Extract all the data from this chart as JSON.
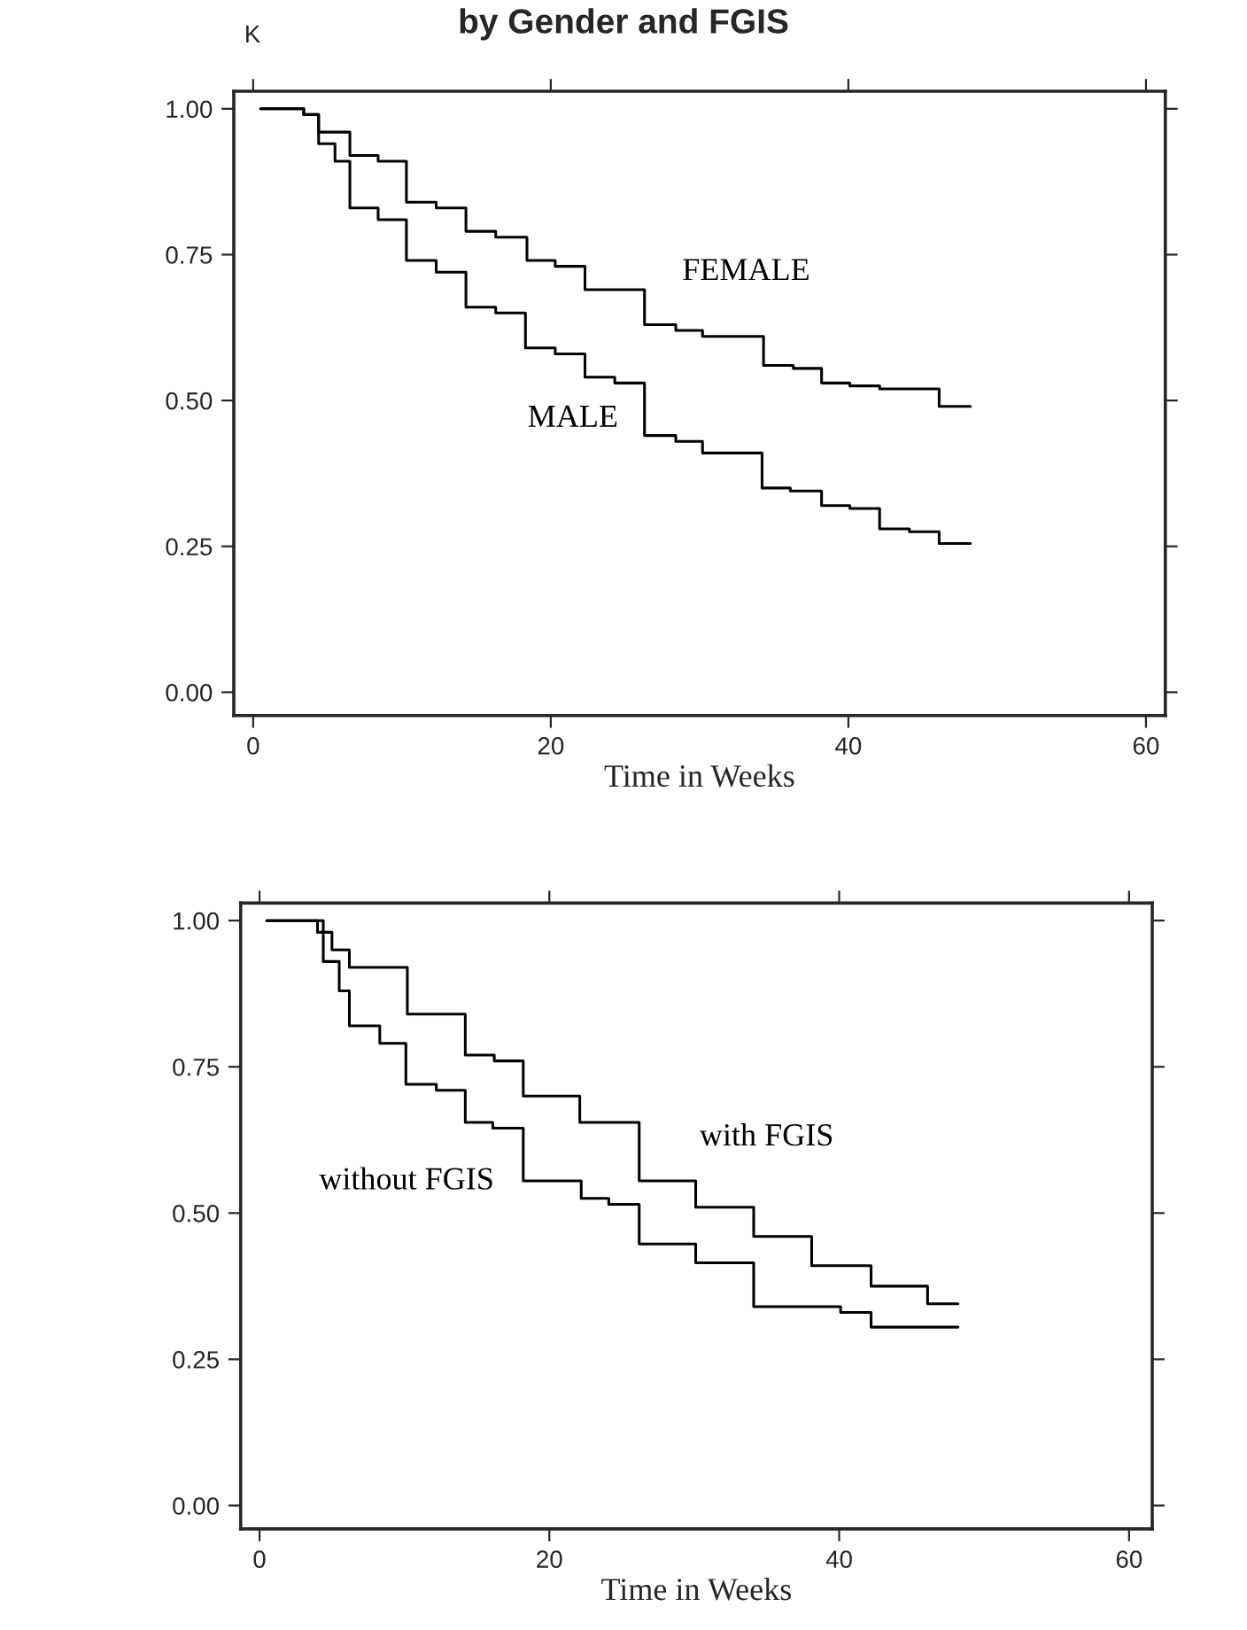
{
  "chart_data": [
    {
      "type": "step",
      "title": "by Gender and FGIS",
      "ylabel": "K",
      "xlabel": "Time in Weeks",
      "xlim": [
        -1.3,
        61.3
      ],
      "ylim": [
        -0.04,
        1.03
      ],
      "xticks": [
        0,
        20,
        40,
        60
      ],
      "yticks": [
        {
          "value": 0,
          "label": "0.00"
        },
        {
          "value": 0.25,
          "label": "0.25"
        },
        {
          "value": 0.5,
          "label": "0.50"
        },
        {
          "value": 0.75,
          "label": "0.75"
        },
        {
          "value": 1,
          "label": "1.00"
        }
      ],
      "grid": false,
      "legend": false,
      "marker": "none",
      "line_style": "solid",
      "series": [
        {
          "name": "FEMALE",
          "color": "#000000",
          "x": [
            0.5,
            3.4,
            4.4,
            6.5,
            8.4,
            10.3,
            12.3,
            14.3,
            16.3,
            18.4,
            20.3,
            22.3,
            26.3,
            28.4,
            30.2,
            34.3,
            36.3,
            38.2,
            40.1,
            42.1,
            46.1,
            48.2
          ],
          "values": [
            1.0,
            0.99,
            0.96,
            0.92,
            0.91,
            0.84,
            0.83,
            0.79,
            0.78,
            0.74,
            0.73,
            0.69,
            0.63,
            0.62,
            0.61,
            0.56,
            0.555,
            0.53,
            0.525,
            0.52,
            0.49,
            0.49
          ]
        },
        {
          "name": "MALE",
          "color": "#000000",
          "x": [
            0.5,
            3.4,
            4.4,
            5.5,
            6.5,
            8.4,
            10.3,
            12.3,
            14.3,
            16.3,
            18.3,
            20.3,
            22.3,
            24.3,
            26.3,
            28.4,
            30.2,
            34.2,
            36.1,
            38.2,
            40.1,
            42.1,
            44.1,
            46.1,
            48.2
          ],
          "values": [
            1.0,
            0.99,
            0.94,
            0.91,
            0.83,
            0.81,
            0.74,
            0.72,
            0.66,
            0.65,
            0.59,
            0.58,
            0.54,
            0.53,
            0.44,
            0.43,
            0.41,
            0.35,
            0.345,
            0.32,
            0.315,
            0.28,
            0.275,
            0.255,
            0.255
          ]
        }
      ]
    },
    {
      "type": "step",
      "xlabel": "Time in Weeks",
      "xlim": [
        -1.3,
        61.6
      ],
      "ylim": [
        -0.04,
        1.03
      ],
      "xticks": [
        0,
        20,
        40,
        60
      ],
      "yticks": [
        {
          "value": 0,
          "label": "0.00"
        },
        {
          "value": 0.25,
          "label": "0.25"
        },
        {
          "value": 0.5,
          "label": "0.50"
        },
        {
          "value": 0.75,
          "label": "0.75"
        },
        {
          "value": 1,
          "label": "1.00"
        }
      ],
      "grid": false,
      "legend": false,
      "marker": "none",
      "line_style": "solid",
      "series": [
        {
          "name": "with FGIS",
          "color": "#000000",
          "x": [
            0.5,
            4.0,
            5.0,
            6.2,
            10.2,
            14.2,
            16.2,
            18.2,
            22.1,
            26.2,
            30.1,
            34.1,
            38.1,
            42.2,
            46.1,
            48.2
          ],
          "values": [
            1.0,
            0.98,
            0.95,
            0.92,
            0.84,
            0.77,
            0.76,
            0.7,
            0.655,
            0.555,
            0.51,
            0.46,
            0.41,
            0.375,
            0.345,
            0.345
          ]
        },
        {
          "name": "without FGIS",
          "color": "#000000",
          "x": [
            0.5,
            4.4,
            5.5,
            6.2,
            8.3,
            10.1,
            12.2,
            14.2,
            16.1,
            18.2,
            22.2,
            24.1,
            26.2,
            30.1,
            34.1,
            40.1,
            42.2,
            48.2
          ],
          "values": [
            1.0,
            0.93,
            0.88,
            0.82,
            0.79,
            0.72,
            0.71,
            0.655,
            0.645,
            0.555,
            0.525,
            0.515,
            0.447,
            0.415,
            0.34,
            0.33,
            0.305,
            0.305
          ]
        }
      ]
    }
  ]
}
